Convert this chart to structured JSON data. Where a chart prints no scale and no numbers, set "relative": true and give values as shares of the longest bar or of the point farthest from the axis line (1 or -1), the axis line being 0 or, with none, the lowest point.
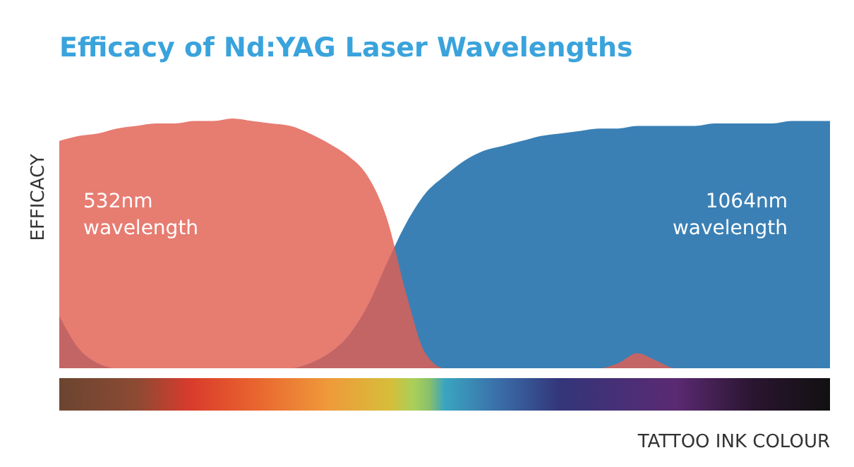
{
  "chart_data": {
    "type": "area",
    "title": "Efficacy of Nd:YAG Laser Wavelengths",
    "xlabel": "TATTOO INK COLOUR",
    "ylabel": "EFFICACY",
    "relative": true,
    "categories": [
      null,
      null,
      null,
      null,
      null,
      null,
      null,
      null,
      null,
      null,
      null,
      null,
      null,
      null,
      null,
      null,
      null,
      null,
      null,
      null,
      null,
      null,
      null,
      null,
      null,
      null,
      null,
      null,
      null,
      null,
      null,
      null,
      null,
      null,
      null,
      null,
      null,
      null,
      null,
      null,
      null
    ],
    "series": [
      {
        "name": "1064nm wavelength",
        "color": "#3a80b5",
        "values": [
          0.21,
          0.08,
          0.02,
          0,
          0,
          0,
          0,
          0,
          0,
          0,
          0,
          0,
          0,
          0.02,
          0.06,
          0.13,
          0.25,
          0.42,
          0.58,
          0.7,
          0.77,
          0.83,
          0.87,
          0.89,
          0.91,
          0.93,
          0.94,
          0.95,
          0.96,
          0.96,
          0.97,
          0.97,
          0.97,
          0.97,
          0.98,
          0.98,
          0.98,
          0.98,
          0.99,
          0.99,
          0.99
        ]
      },
      {
        "name": "532nm wavelength",
        "color": "#e25f52",
        "values": [
          0.91,
          0.93,
          0.94,
          0.96,
          0.97,
          0.98,
          0.98,
          0.99,
          0.99,
          1,
          0.99,
          0.98,
          0.97,
          0.94,
          0.9,
          0.85,
          0.77,
          0.6,
          0.3,
          0.06,
          0,
          0,
          0,
          0,
          0,
          0,
          0,
          0,
          0,
          0.02,
          0.06,
          0.03,
          0,
          0,
          0,
          0,
          0,
          0,
          0,
          0,
          0
        ]
      }
    ]
  }
}
